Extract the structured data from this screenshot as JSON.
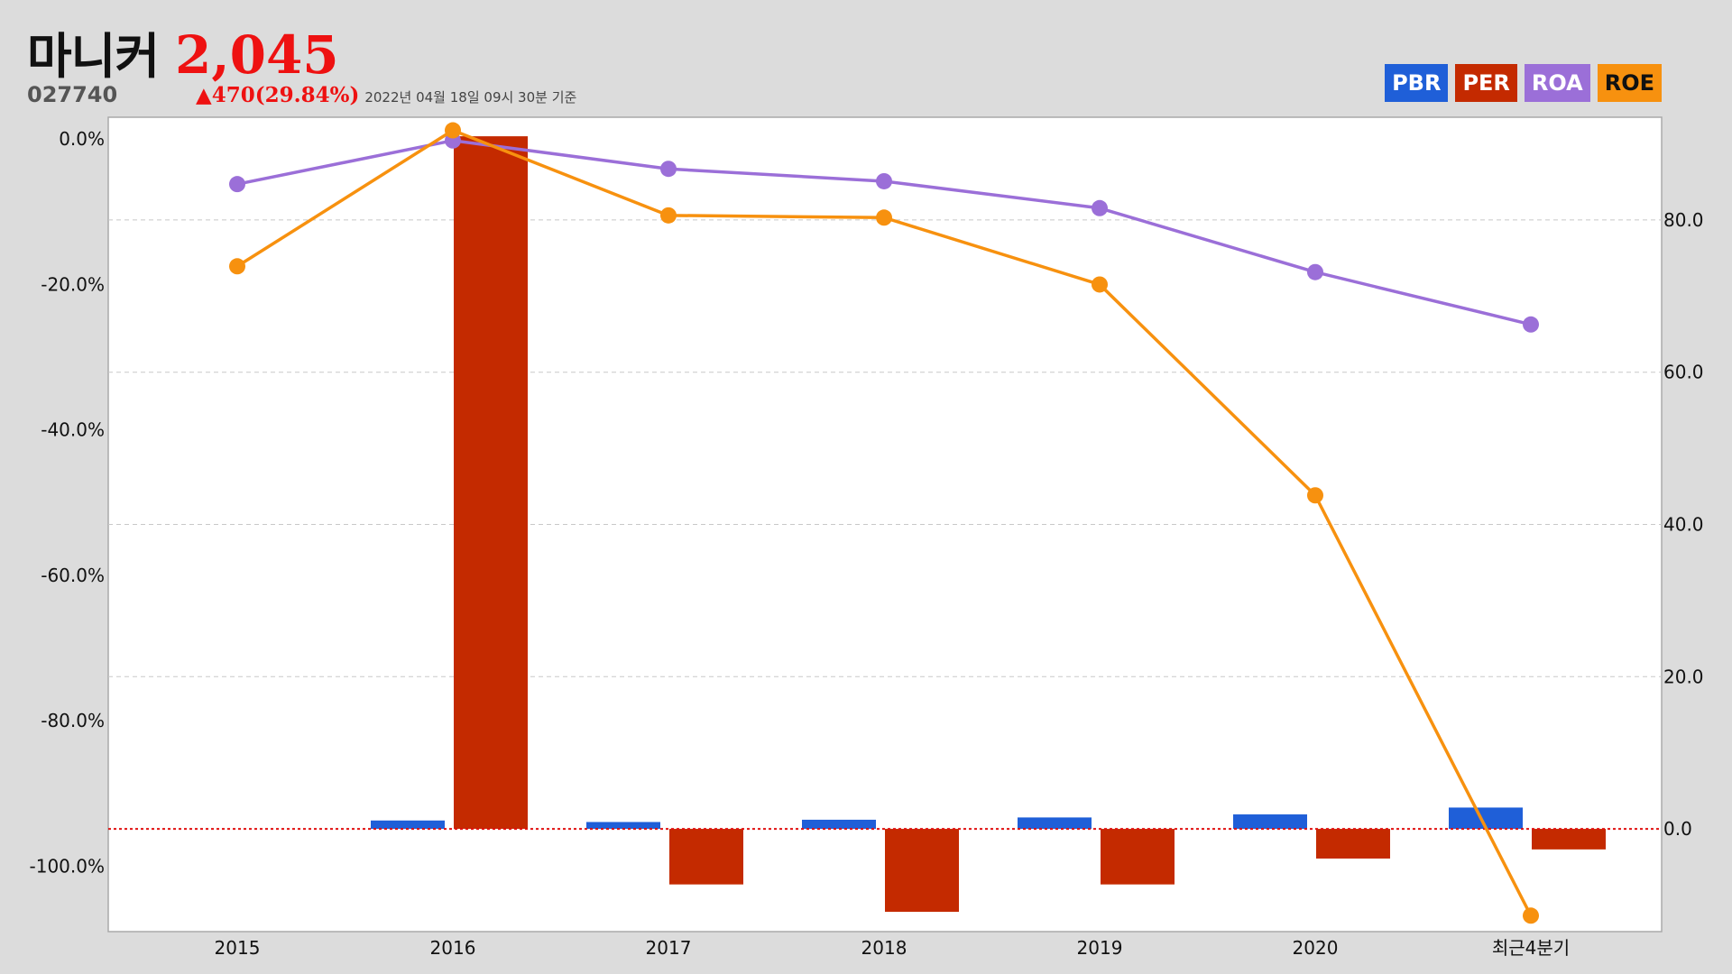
{
  "header": {
    "stock_name": "마니커",
    "price": "2,045",
    "stock_code": "027740",
    "change": "▲470(29.84%)",
    "timestamp": "2022년 04월 18일 09시 30분 기준"
  },
  "colors": {
    "PBR": "#1f5fd8",
    "PER": "#c42a00",
    "ROA": "#9b6fd8",
    "ROE": "#f7910f",
    "up": "#ee1111",
    "zero_line": "#e01010"
  },
  "chart_data": {
    "type": "bar",
    "categories": [
      "2015",
      "2016",
      "2017",
      "2018",
      "2019",
      "2020",
      "최근4분기"
    ],
    "legend": [
      "PBR",
      "PER",
      "ROA",
      "ROE"
    ],
    "legend_placement": "top-right",
    "y_left": {
      "ticks": [
        "0.0%",
        "-20.0%",
        "-40.0%",
        "-60.0%",
        "-80.0%",
        "-100.0%"
      ],
      "range": [
        -109,
        3
      ]
    },
    "y_right": {
      "ticks": [
        "80.0",
        "60.0",
        "40.0",
        "20.0",
        "0.0"
      ],
      "range": [
        -13.5,
        93.5
      ]
    },
    "grid": true,
    "series": [
      {
        "name": "PBR",
        "type": "bar",
        "axis": "right",
        "values": [
          null,
          1.1,
          0.9,
          1.2,
          1.5,
          1.9,
          2.8
        ]
      },
      {
        "name": "PER",
        "type": "bar",
        "axis": "right",
        "values": [
          null,
          91.0,
          -7.3,
          -10.9,
          -7.3,
          -3.9,
          -2.7
        ]
      },
      {
        "name": "ROA",
        "type": "line",
        "axis": "left",
        "values": [
          -6.2,
          -0.2,
          -4.1,
          -5.8,
          -9.5,
          -18.3,
          -25.5
        ]
      },
      {
        "name": "ROE",
        "type": "line",
        "axis": "left",
        "values": [
          -17.5,
          1.2,
          -10.5,
          -10.8,
          -20.0,
          -49.0,
          -106.8
        ]
      }
    ]
  }
}
